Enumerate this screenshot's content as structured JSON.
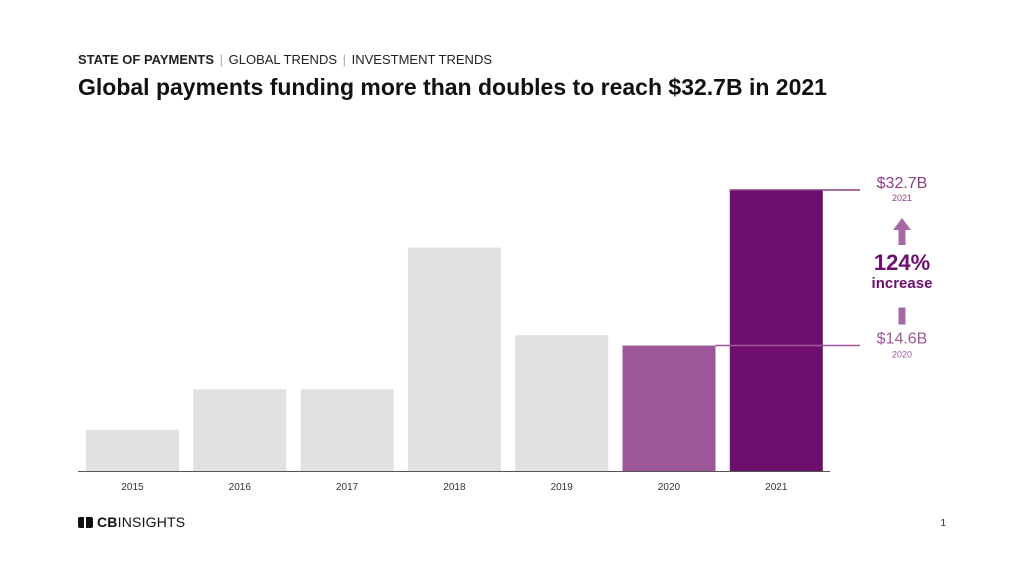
{
  "header": {
    "breadcrumb": [
      "STATE OF PAYMENTS",
      "GLOBAL TRENDS",
      "INVESTMENT TRENDS"
    ],
    "title": "Global payments funding more than doubles to reach $32.7B in 2021"
  },
  "chart_data": {
    "type": "bar",
    "title": "Global payments funding more than doubles to reach $32.7B in 2021",
    "xlabel": "",
    "ylabel": "",
    "categories": [
      "2015",
      "2016",
      "2017",
      "2018",
      "2019",
      "2020",
      "2021"
    ],
    "values": [
      4.8,
      9.5,
      9.5,
      26.0,
      15.8,
      14.6,
      32.7
    ],
    "ylim": [
      0,
      33
    ],
    "grid": false,
    "colors": [
      "#e1e1e1",
      "#e1e1e1",
      "#e1e1e1",
      "#e1e1e1",
      "#e1e1e1",
      "#9c5799",
      "#6e0f6e"
    ],
    "annotations": {
      "high": {
        "value": "$32.7B",
        "year": "2021",
        "color": "#8a3f86"
      },
      "low": {
        "value": "$14.6B",
        "year": "2020",
        "color": "#9c5799"
      },
      "change": {
        "pct": "124%",
        "label": "increase",
        "color": "#6e0f6e",
        "arrow_color": "#a66aa3"
      }
    }
  },
  "footer": {
    "logo_bold": "CB",
    "logo_rest": "INSIGHTS",
    "page_number": "1"
  }
}
